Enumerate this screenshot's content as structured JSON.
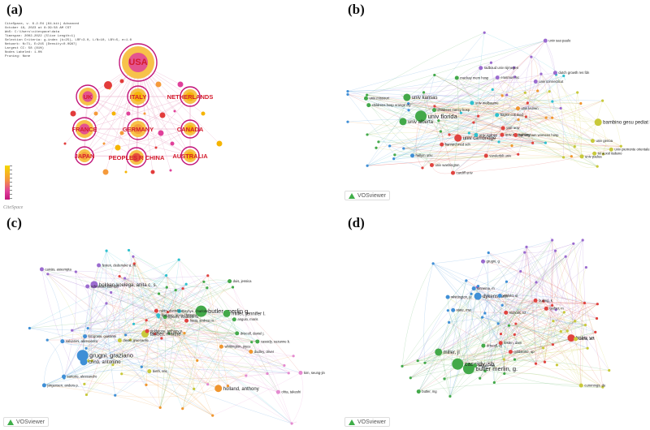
{
  "panels": {
    "a": {
      "label": "(a)",
      "tool_mark": "CiteSpace",
      "meta_lines": [
        "CiteSpace, v. 6.2.R4 (64-bit) Advanced",
        "October 18, 2023 at 8:39:58 AM CST",
        "WoS: C:\\Users\\citespace\\data",
        "Timespan: 2002-2022 (Slice Length=1)",
        "Selection Criteria: g-index (k=25), LRF=3.0, L/N=10, LBY=5, e=1.0",
        "Network: N=71, E=245 (Density=0.0987)",
        "Largest CC: 58 (81%)",
        "Nodes Labeled: 1.0%",
        "Pruning: None"
      ],
      "nodes": [
        {
          "id": "usa",
          "label": "USA",
          "c": "#e0409a"
        },
        {
          "id": "uk",
          "label": "UK",
          "c": "#e0409a"
        },
        {
          "id": "italy",
          "label": "ITALY",
          "c": "#f5b400"
        },
        {
          "id": "netherlands",
          "label": "NETHERLANDS",
          "c": "#f5b400"
        },
        {
          "id": "france",
          "label": "FRANCE",
          "c": "#e0409a"
        },
        {
          "id": "germany",
          "label": "GERMANY",
          "c": "#f59a3a"
        },
        {
          "id": "canada",
          "label": "CANADA",
          "c": "#f5b400"
        },
        {
          "id": "japan",
          "label": "JAPAN",
          "c": "#f59a3a"
        },
        {
          "id": "china",
          "label": "PEOPLES R CHINA",
          "c": "#e23b3b"
        },
        {
          "id": "australia",
          "label": "AUSTRALIA",
          "c": "#f5b400"
        }
      ]
    },
    "b": {
      "label": "(b)",
      "badge": "VOSviewer",
      "nodes": [
        {
          "label": "univ florida",
          "cl": "green",
          "size": "L"
        },
        {
          "label": "univ kansas",
          "cl": "green",
          "size": "M"
        },
        {
          "label": "univ alberta",
          "cl": "green",
          "size": "M"
        },
        {
          "label": "univ cambridge",
          "cl": "red",
          "size": "M"
        },
        {
          "label": "bambino gesu pediat hosp",
          "cl": "yellow",
          "size": "M"
        },
        {
          "label": "ist auxol italiano",
          "cl": "yellow",
          "size": "S"
        },
        {
          "label": "dutch growth res fdn",
          "cl": "purple",
          "size": "S"
        },
        {
          "label": "radboud univ nijmegen",
          "cl": "purple",
          "size": "S"
        },
        {
          "label": "erasmus mc",
          "cl": "purple",
          "size": "S"
        },
        {
          "label": "univ sydney",
          "cl": "cyan",
          "size": "S"
        },
        {
          "label": "univ washington",
          "cl": "red",
          "size": "S"
        },
        {
          "label": "univ missouri",
          "cl": "green",
          "size": "S"
        },
        {
          "label": "baylor coll med",
          "cl": "cyan",
          "size": "S"
        },
        {
          "label": "vanderbilt univ",
          "cl": "red",
          "size": "S"
        },
        {
          "label": "univ nottingham",
          "cl": "red",
          "size": "S"
        },
        {
          "label": "mackay mem hosp",
          "cl": "green",
          "size": "S"
        },
        {
          "label": "childrens hosp orange cty",
          "cl": "green",
          "size": "S"
        },
        {
          "label": "univ sao paulo",
          "cl": "purple",
          "size": "S"
        },
        {
          "label": "univ connecticut",
          "cl": "purple",
          "size": "S"
        },
        {
          "label": "birmingham womens hosp",
          "cl": "red",
          "size": "S"
        },
        {
          "label": "univ piemonte orientale",
          "cl": "yellow",
          "size": "S"
        },
        {
          "label": "univ genoa",
          "cl": "yellow",
          "size": "S"
        },
        {
          "label": "cardiff univ",
          "cl": "red",
          "size": "S"
        },
        {
          "label": "hallym univ",
          "cl": "blue",
          "size": "S"
        },
        {
          "label": "childrens mercy hosp",
          "cl": "green",
          "size": "S"
        },
        {
          "label": "yale univ",
          "cl": "red",
          "size": "S"
        },
        {
          "label": "harvard med sch",
          "cl": "red",
          "size": "S"
        },
        {
          "label": "univ melbourne",
          "cl": "cyan",
          "size": "S"
        },
        {
          "label": "univ padua",
          "cl": "yellow",
          "size": "S"
        },
        {
          "label": "univ leuven",
          "cl": "orange",
          "size": "S"
        }
      ]
    },
    "c": {
      "label": "(c)",
      "badge": "VOSviewer",
      "nodes": [
        {
          "label": "butler, merlin g.",
          "cl": "green",
          "size": "L"
        },
        {
          "label": "miller, jennifer l.",
          "cl": "green",
          "size": "M"
        },
        {
          "label": "grugni, graziano",
          "cl": "blue",
          "size": "L"
        },
        {
          "label": "crinò, antonino",
          "cl": "blue",
          "size": "M"
        },
        {
          "label": "hokken-koelega, anita c. s.",
          "cl": "purple",
          "size": "M"
        },
        {
          "label": "tauber, maithé",
          "cl": "yellow",
          "size": "M"
        },
        {
          "label": "holland, anthony",
          "cl": "orange",
          "size": "M"
        },
        {
          "label": "whittington, joyce",
          "cl": "orange",
          "size": "S"
        },
        {
          "label": "driscoll, daniel j.",
          "cl": "green",
          "size": "S"
        },
        {
          "label": "sartorio, alessandro",
          "cl": "blue",
          "size": "S"
        },
        {
          "label": "cassidy, suzanne b.",
          "cl": "green",
          "size": "S"
        },
        {
          "label": "diene, gwenaelle",
          "cl": "yellow",
          "size": "S"
        },
        {
          "label": "goldstone, anthony p.",
          "cl": "red",
          "size": "S"
        },
        {
          "label": "festen, dederieke a. m.",
          "cl": "purple",
          "size": "S"
        },
        {
          "label": "höybye, charlotte",
          "cl": "cyan",
          "size": "S"
        },
        {
          "label": "salvatoni, alessandro",
          "cl": "blue",
          "size": "S"
        },
        {
          "label": "angulo, moris",
          "cl": "green",
          "size": "S"
        },
        {
          "label": "dykens, elisabeth m.",
          "cl": "green",
          "size": "S"
        },
        {
          "label": "rubin, daniela a.",
          "cl": "red",
          "size": "S"
        },
        {
          "label": "dudley, oliver",
          "cl": "orange",
          "size": "S"
        },
        {
          "label": "caixàs, assumpta",
          "cl": "purple",
          "size": "S"
        },
        {
          "label": "jørgensen, anders p.",
          "cl": "blue",
          "size": "S"
        },
        {
          "label": "lindgren, anna-christina",
          "cl": "cyan",
          "size": "S"
        },
        {
          "label": "ohta, takeshi",
          "cl": "pink",
          "size": "S"
        },
        {
          "label": "haqq, andrea m.",
          "cl": "red",
          "size": "S"
        },
        {
          "label": "duis, jessica",
          "cl": "green",
          "size": "S"
        },
        {
          "label": "schrander-stumpel",
          "cl": "purple",
          "size": "S"
        },
        {
          "label": "lucignani, giovanni",
          "cl": "blue",
          "size": "S"
        },
        {
          "label": "kim, seung-jin",
          "cl": "pink",
          "size": "S"
        },
        {
          "label": "bieth, eric",
          "cl": "yellow",
          "size": "S"
        }
      ]
    },
    "d": {
      "label": "(d)",
      "badge": "VOSviewer",
      "nodes": [
        {
          "label": "butler merlin, g.",
          "cl": "green",
          "size": "L"
        },
        {
          "label": "cassidy, sb",
          "cl": "green",
          "size": "L"
        },
        {
          "label": "dykens, em",
          "cl": "blue",
          "size": "M"
        },
        {
          "label": "miller, jl",
          "cl": "green",
          "size": "M"
        },
        {
          "label": "holm, va",
          "cl": "red",
          "size": "M"
        },
        {
          "label": "nicholls, rd",
          "cl": "red",
          "size": "S"
        },
        {
          "label": "goldstone, ap",
          "cl": "red",
          "size": "S"
        },
        {
          "label": "whittington, je",
          "cl": "blue",
          "size": "S"
        },
        {
          "label": "carrel, al",
          "cl": "yellow",
          "size": "S"
        },
        {
          "label": "tauber, m",
          "cl": "red",
          "size": "S"
        },
        {
          "label": "driscoll, dj",
          "cl": "green",
          "size": "S"
        },
        {
          "label": "cummings, de",
          "cl": "yellow",
          "size": "S"
        },
        {
          "label": "state, mw",
          "cl": "blue",
          "size": "S"
        },
        {
          "label": "buiting, k",
          "cl": "red",
          "size": "S"
        },
        {
          "label": "angulo, ma",
          "cl": "green",
          "size": "S"
        },
        {
          "label": "festen, dam",
          "cl": "red",
          "size": "S"
        },
        {
          "label": "einfeld, sl",
          "cl": "blue",
          "size": "S"
        },
        {
          "label": "sinnema, m",
          "cl": "blue",
          "size": "S"
        },
        {
          "label": "grugni, g",
          "cl": "purple",
          "size": "S"
        },
        {
          "label": "butler, mg",
          "cl": "green",
          "size": "S"
        }
      ]
    }
  }
}
